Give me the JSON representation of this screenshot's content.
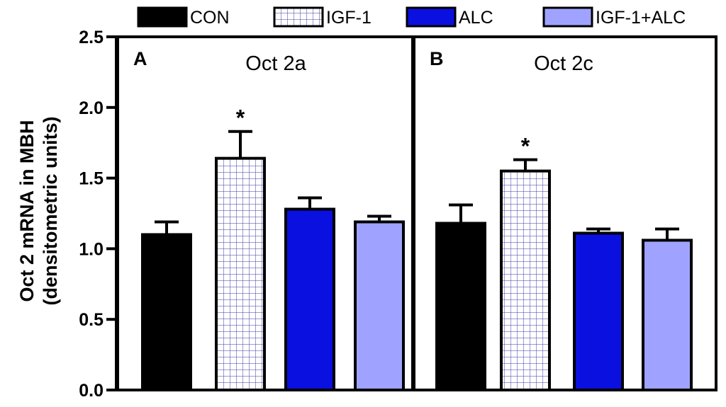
{
  "chart_data": {
    "type": "bar",
    "ylabel_line1": "Oct 2 mRNA in MBH",
    "ylabel_line2": "(densitometric units)",
    "ylim": [
      0.0,
      2.5
    ],
    "yticks": [
      "0.0",
      "0.5",
      "1.0",
      "1.5",
      "2.0",
      "2.5"
    ],
    "legend": [
      {
        "label": "CON",
        "color": "#000000",
        "pattern": "solid"
      },
      {
        "label": "IGF-1",
        "color": "#2222aa",
        "pattern": "grid"
      },
      {
        "label": "ALC",
        "color": "#0a10e0",
        "pattern": "solid"
      },
      {
        "label": "IGF-1+ALC",
        "color": "#9fa3ff",
        "pattern": "solid"
      }
    ],
    "panels": [
      {
        "letter": "A",
        "title": "Oct 2a",
        "categories": [
          "CON",
          "IGF-1",
          "ALC",
          "IGF-1+ALC"
        ],
        "values": [
          1.1,
          1.64,
          1.28,
          1.19
        ],
        "errors": [
          0.09,
          0.19,
          0.08,
          0.04
        ],
        "significance": [
          "",
          "*",
          "",
          ""
        ]
      },
      {
        "letter": "B",
        "title": "Oct 2c",
        "categories": [
          "CON",
          "IGF-1",
          "ALC",
          "IGF-1+ALC"
        ],
        "values": [
          1.18,
          1.55,
          1.11,
          1.06
        ],
        "errors": [
          0.13,
          0.08,
          0.03,
          0.08
        ],
        "significance": [
          "",
          "*",
          "",
          ""
        ]
      }
    ]
  }
}
